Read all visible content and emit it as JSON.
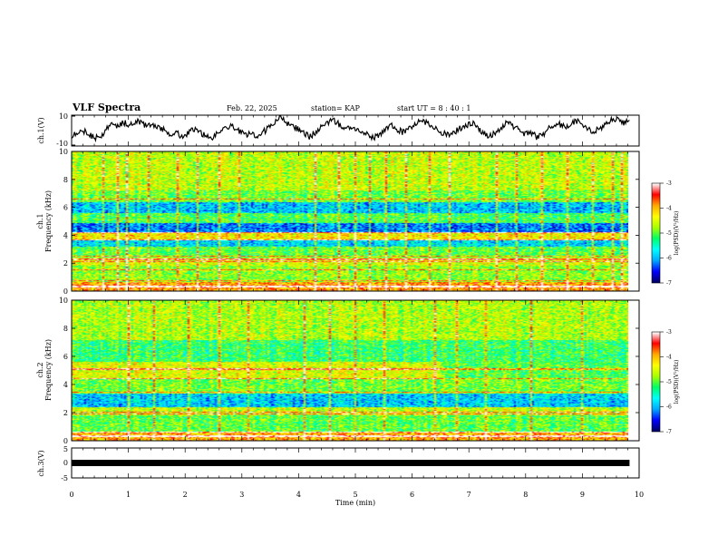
{
  "header": {
    "title": "VLF Spectra",
    "date": "Feb. 22, 2025",
    "station": "station= KAP",
    "start_ut": "start  UT =  8 : 40 : 1"
  },
  "colors": {
    "colormap": [
      "#000066",
      "#0000ff",
      "#00aaff",
      "#00ffff",
      "#00ff66",
      "#aaff00",
      "#ffff00",
      "#ffaa00",
      "#ff0000",
      "#ffffff"
    ],
    "trace": "#000000",
    "ch3_bar": "#000000"
  },
  "chart_data": [
    {
      "name": "ch1-voltage",
      "type": "line",
      "ylabel": "ch.1(V)",
      "ylim": [
        -10,
        10
      ],
      "y_ticks": [
        "10",
        "-10"
      ],
      "x_range_min": [
        0,
        9.83
      ],
      "description_series": "waveform amplitude (V), noisy",
      "values": [
        -3,
        -1,
        0,
        -2,
        -5,
        -4,
        1,
        4,
        3,
        5,
        4,
        6,
        5,
        3,
        4,
        2,
        0,
        -2,
        -1,
        -4,
        -2,
        1,
        -1,
        -3,
        -5,
        -2,
        0,
        3,
        2,
        -1,
        -3,
        -2,
        -5,
        -1,
        2,
        6,
        8,
        5,
        3,
        1,
        -2,
        -4,
        -1,
        2,
        5,
        7,
        4,
        2,
        3,
        1,
        -2,
        -3,
        -5,
        -2,
        0,
        3,
        1,
        -1,
        2,
        4,
        6,
        5,
        3,
        1,
        -2,
        -3,
        -1,
        2,
        3,
        5,
        1,
        -2,
        -4,
        -1,
        2,
        6,
        3,
        0,
        -2,
        -1,
        -4,
        -3,
        1,
        3,
        4,
        2,
        5,
        6,
        3,
        1,
        -1,
        2,
        4,
        7,
        8,
        5,
        6
      ]
    },
    {
      "name": "ch1-spectrogram",
      "type": "heatmap",
      "ylabel": "ch.1\nFrequency  (kHz)",
      "ylabel_lines": [
        "ch.1",
        "Frequency  (kHz)"
      ],
      "y_ticks": [
        "0",
        "2",
        "4",
        "6",
        "8",
        "10"
      ],
      "ylim_khz": [
        0,
        10
      ],
      "colorbar": {
        "label": "log(PSD)(V²/Hz)",
        "ticks": [
          "-3",
          "-4",
          "-5",
          "-6",
          "-7"
        ],
        "range": [
          -7,
          -3
        ]
      },
      "bands_khz": [
        {
          "from": 0.0,
          "to": 0.6,
          "level": 0.78
        },
        {
          "from": 0.6,
          "to": 1.8,
          "level": 0.55
        },
        {
          "from": 1.8,
          "to": 2.4,
          "level": 0.62
        },
        {
          "from": 2.4,
          "to": 3.2,
          "level": 0.5
        },
        {
          "from": 3.2,
          "to": 3.6,
          "level": 0.3
        },
        {
          "from": 3.6,
          "to": 4.2,
          "level": 0.68
        },
        {
          "from": 4.2,
          "to": 4.9,
          "level": 0.2
        },
        {
          "from": 4.9,
          "to": 5.6,
          "level": 0.48
        },
        {
          "from": 5.6,
          "to": 6.4,
          "level": 0.27
        },
        {
          "from": 6.4,
          "to": 7.2,
          "level": 0.52
        },
        {
          "from": 7.2,
          "to": 10.0,
          "level": 0.6
        }
      ],
      "lines_khz": [
        0.3,
        0.7,
        1.5,
        2.1,
        2.25,
        2.5,
        3.65,
        4.2,
        6.6
      ],
      "spikes_min": [
        0.55,
        0.8,
        0.95,
        1.35,
        1.55,
        1.85,
        2.2,
        2.6,
        2.95,
        3.25,
        3.7,
        4.3,
        4.7,
        5.0,
        5.25,
        5.55,
        5.9,
        6.3,
        6.65,
        7.0,
        7.5,
        7.85,
        8.3,
        8.75,
        9.2,
        9.55,
        9.7
      ]
    },
    {
      "name": "ch2-spectrogram",
      "type": "heatmap",
      "ylabel": "ch.2\nFrequency  (kHz)",
      "ylabel_lines": [
        "ch.2",
        "Frequency  (kHz)"
      ],
      "y_ticks": [
        "0",
        "2",
        "4",
        "6",
        "8",
        "10"
      ],
      "ylim_khz": [
        0,
        10
      ],
      "colorbar": {
        "label": "log(PSD)(V²/Hz)",
        "ticks": [
          "-3",
          "-4",
          "-5",
          "-6",
          "-7"
        ],
        "range": [
          -7,
          -3
        ]
      },
      "bands_khz": [
        {
          "from": 0.0,
          "to": 0.6,
          "level": 0.76
        },
        {
          "from": 0.6,
          "to": 1.8,
          "level": 0.5
        },
        {
          "from": 1.8,
          "to": 2.4,
          "level": 0.6
        },
        {
          "from": 2.4,
          "to": 3.4,
          "level": 0.28
        },
        {
          "from": 3.4,
          "to": 4.4,
          "level": 0.52
        },
        {
          "from": 4.4,
          "to": 5.6,
          "level": 0.63
        },
        {
          "from": 5.6,
          "to": 7.2,
          "level": 0.45
        },
        {
          "from": 7.2,
          "to": 10.0,
          "level": 0.58
        }
      ],
      "lines_khz": [
        0.3,
        0.6,
        1.9,
        2.0,
        3.4,
        4.4,
        5.1
      ],
      "spikes_min": [
        0.5,
        0.75,
        1.0,
        1.45,
        1.55,
        1.65,
        2.05,
        2.6,
        3.1,
        3.7,
        4.1,
        4.55,
        5.0,
        5.2,
        5.5,
        6.0,
        6.4,
        6.8,
        7.3,
        7.7,
        8.1,
        8.6,
        9.0,
        9.4,
        9.65
      ]
    },
    {
      "name": "ch3-voltage",
      "type": "line",
      "ylabel": "ch.3(V)",
      "ylim": [
        -5,
        5
      ],
      "y_ticks": [
        "5",
        "0",
        "-5"
      ],
      "level_v": 0.0,
      "x_range_min": [
        0,
        9.83
      ]
    }
  ],
  "x_axis": {
    "label": "Time  (min)",
    "ticks": [
      "0",
      "1",
      "2",
      "3",
      "4",
      "5",
      "6",
      "7",
      "8",
      "9",
      "10"
    ],
    "xlim_min": [
      0,
      10
    ]
  }
}
